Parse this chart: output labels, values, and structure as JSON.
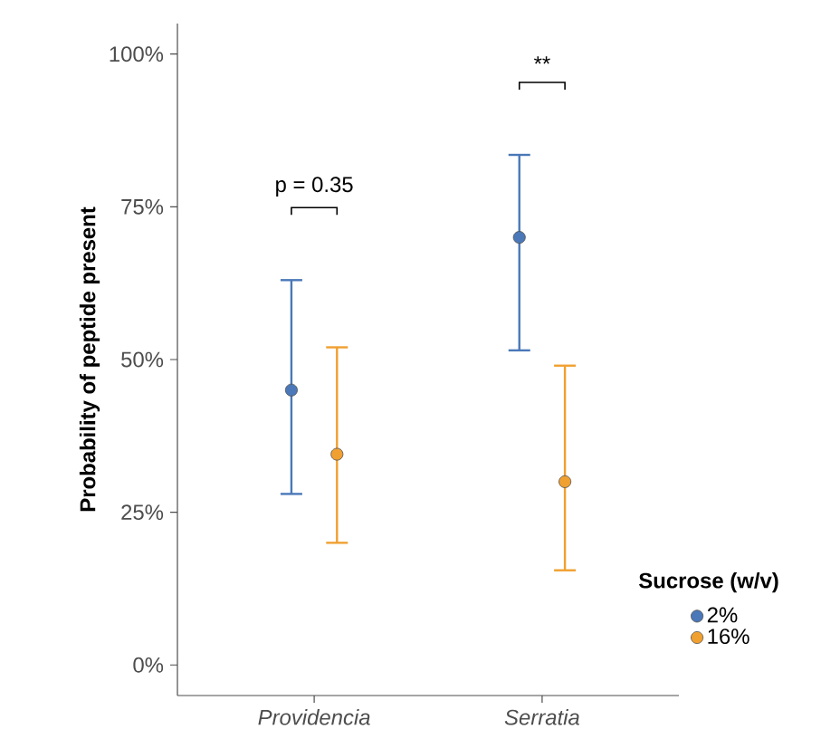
{
  "chart_data": {
    "type": "scatter",
    "ylabel": "Probability of peptide present",
    "legend_title": "Sucrose (w/v)",
    "legend": "right",
    "grid": false,
    "categories": [
      "Providencia",
      "Serratia"
    ],
    "ylim": [
      -5,
      105
    ],
    "yticks": [
      {
        "value": 0,
        "label": "0%"
      },
      {
        "value": 25,
        "label": "25%"
      },
      {
        "value": 50,
        "label": "50%"
      },
      {
        "value": 75,
        "label": "75%"
      },
      {
        "value": 100,
        "label": "100%"
      }
    ],
    "series": [
      {
        "name": "2%",
        "color": "#4a78b8",
        "values": [
          45,
          70
        ],
        "errors": [
          [
            28,
            63
          ],
          [
            51.5,
            83.5
          ]
        ]
      },
      {
        "name": "16%",
        "color": "#f0a030",
        "values": [
          34.5,
          30
        ],
        "errors": [
          [
            20,
            52
          ],
          [
            15.5,
            49
          ]
        ]
      }
    ],
    "annotations": [
      "p = 0.35",
      "**"
    ]
  }
}
